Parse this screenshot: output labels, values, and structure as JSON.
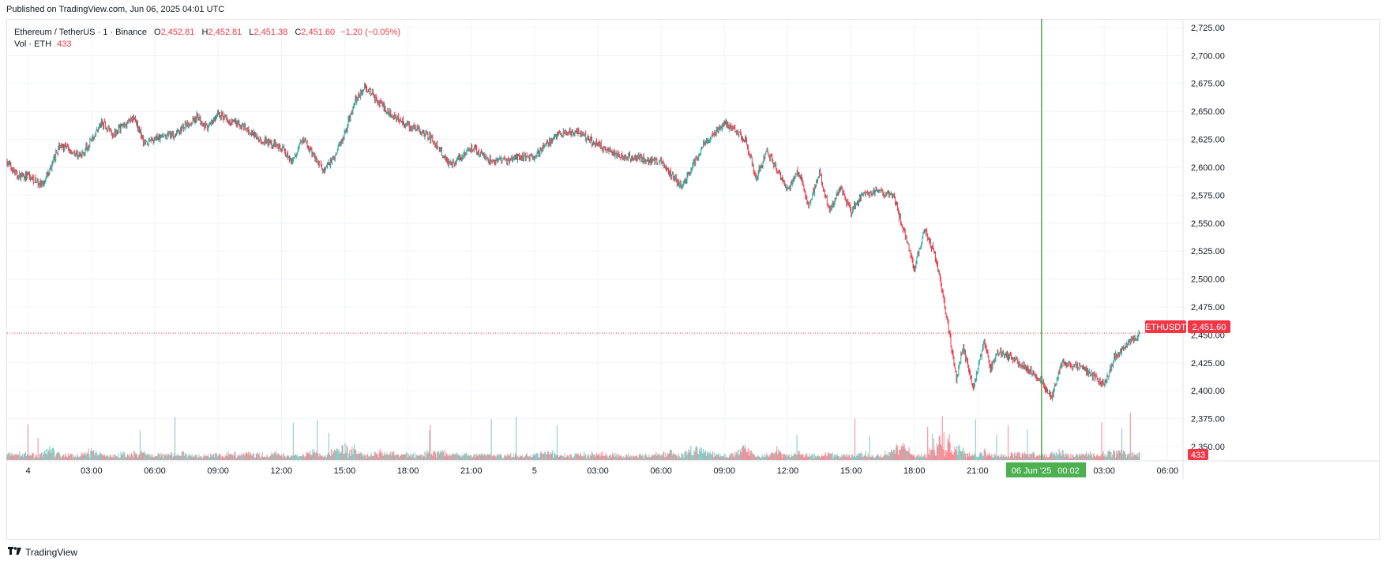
{
  "published": "Published on TradingView.com, Jun 06, 2025 04:01 UTC",
  "legend": {
    "symbol": "Ethereum / TetherUS · 1 · Binance",
    "o_label": "O",
    "o": "2,452.81",
    "h_label": "H",
    "h": "2,452.81",
    "l_label": "L",
    "l": "2,451.38",
    "c_label": "C",
    "c": "2,451.60",
    "change": "−1.20 (−0.05%)",
    "vol_label": "Vol · ETH",
    "vol_value": "433"
  },
  "price_tag": {
    "symbol": "ETHUSDT",
    "value": "2,451.60"
  },
  "volume_tag": "433",
  "crosshair_label": {
    "date": "06 Jun '25",
    "time": "00:02"
  },
  "brand": "TradingView",
  "colors": {
    "up": "#26a69a",
    "down": "#f23645",
    "grid": "#f0f3fa",
    "crosshair": "#4caf50",
    "axis_text": "#131722"
  },
  "chart_data": {
    "type": "line",
    "title": "Ethereum / TetherUS · 1 · Binance",
    "y_ticks": [
      2350,
      2375,
      2400,
      2425,
      2450,
      2475,
      2500,
      2525,
      2550,
      2575,
      2600,
      2625,
      2650,
      2675,
      2700,
      2725
    ],
    "y_tick_labels": [
      "2,350.00",
      "2,375.00",
      "2,400.00",
      "2,425.00",
      "2,450.00",
      "2,475.00",
      "2,500.00",
      "2,525.00",
      "2,550.00",
      "2,575.00",
      "2,600.00",
      "2,625.00",
      "2,650.00",
      "2,675.00",
      "2,700.00",
      "2,725.00"
    ],
    "ylim": [
      2338,
      2732
    ],
    "x_unit": "hours since Jun 4 00:00 UTC",
    "xlim": [
      -1.0,
      54.7
    ],
    "x_ticks": [
      0,
      3,
      6,
      9,
      12,
      15,
      18,
      21,
      24,
      27,
      30,
      33,
      36,
      39,
      42,
      45,
      48,
      51,
      54
    ],
    "x_tick_labels": [
      "4",
      "03:00",
      "06:00",
      "09:00",
      "12:00",
      "15:00",
      "18:00",
      "21:00",
      "5",
      "03:00",
      "06:00",
      "09:00",
      "12:00",
      "15:00",
      "18:00",
      "21:00",
      "",
      "03:00",
      "06:00"
    ],
    "crosshair_x": 48.03,
    "last_price": 2451.6,
    "x": [
      -1.0,
      -0.5,
      0,
      0.7,
      1.5,
      2.5,
      3.5,
      4,
      5,
      5.5,
      6,
      7,
      8,
      8.5,
      9,
      10,
      11,
      12,
      12.5,
      13,
      14,
      14.5,
      15,
      15.5,
      16,
      17,
      18,
      19,
      20,
      21,
      21.5,
      22,
      23,
      24,
      25,
      26,
      27,
      28,
      29,
      30,
      31,
      32,
      33,
      34,
      34.5,
      35,
      36,
      36.5,
      37,
      37.5,
      38,
      38.5,
      39,
      39.5,
      40,
      41,
      42,
      42.5,
      43,
      43.5,
      44,
      44.3,
      44.8,
      45,
      45.3,
      45.6,
      46,
      47,
      48,
      48.5,
      49,
      50,
      51,
      51.5,
      52,
      52.7
    ],
    "close": [
      2605,
      2592,
      2592,
      2583,
      2620,
      2610,
      2640,
      2630,
      2645,
      2622,
      2625,
      2630,
      2645,
      2635,
      2648,
      2638,
      2625,
      2618,
      2605,
      2625,
      2597,
      2610,
      2630,
      2660,
      2672,
      2650,
      2638,
      2628,
      2602,
      2618,
      2612,
      2605,
      2608,
      2610,
      2628,
      2632,
      2620,
      2610,
      2608,
      2605,
      2582,
      2620,
      2640,
      2625,
      2590,
      2615,
      2580,
      2598,
      2565,
      2595,
      2560,
      2582,
      2560,
      2575,
      2578,
      2575,
      2510,
      2545,
      2520,
      2470,
      2410,
      2440,
      2400,
      2420,
      2445,
      2420,
      2435,
      2425,
      2410,
      2393,
      2425,
      2420,
      2405,
      2430,
      2440,
      2451.6
    ]
  }
}
